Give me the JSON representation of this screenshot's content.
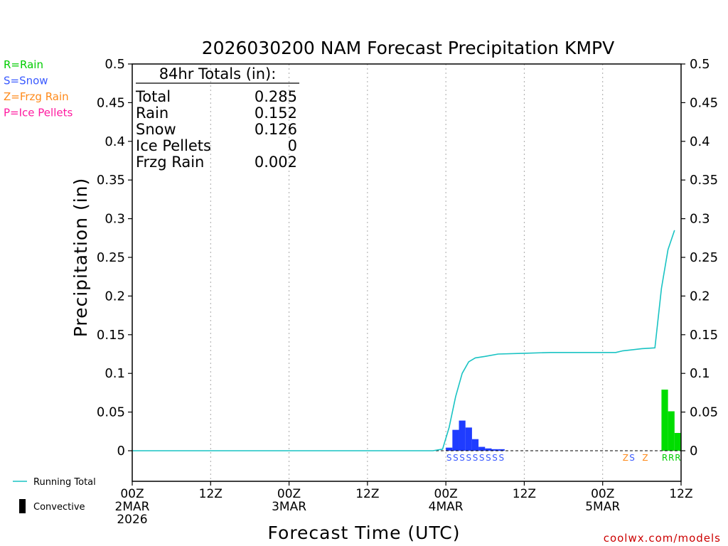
{
  "chart_data": {
    "type": "bar",
    "title": "2026030200 NAM Forecast Precipitation KMPV",
    "xlabel": "Forecast Time (UTC)",
    "ylabel": "Precipitation (in)",
    "xlim": [
      0,
      84
    ],
    "ylim": [
      -0.04,
      0.5
    ],
    "yticks": [
      0,
      0.05,
      0.1,
      0.15,
      0.2,
      0.25,
      0.3,
      0.35,
      0.4,
      0.45,
      0.5
    ],
    "ytick_labels": [
      "0",
      "0.05",
      "0.1",
      "0.15",
      "0.2",
      "0.25",
      "0.3",
      "0.35",
      "0.4",
      "0.45",
      "0.5"
    ],
    "xticks": [
      {
        "hour": 0,
        "lines": [
          "00Z",
          "2MAR",
          "2026"
        ]
      },
      {
        "hour": 12,
        "lines": [
          "12Z"
        ]
      },
      {
        "hour": 24,
        "lines": [
          "00Z",
          "3MAR"
        ]
      },
      {
        "hour": 36,
        "lines": [
          "12Z"
        ]
      },
      {
        "hour": 48,
        "lines": [
          "00Z",
          "4MAR"
        ]
      },
      {
        "hour": 60,
        "lines": [
          "12Z"
        ]
      },
      {
        "hour": 72,
        "lines": [
          "00Z",
          "5MAR"
        ]
      },
      {
        "hour": 84,
        "lines": [
          "12Z"
        ]
      }
    ],
    "type_legend": [
      {
        "label": "R=Rain",
        "color": "#00cc00"
      },
      {
        "label": "S=Snow",
        "color": "#3a5aff"
      },
      {
        "label": "Z=Frzg Rain",
        "color": "#ff8a1a"
      },
      {
        "label": "P=Ice Pellets",
        "color": "#ff1aa0"
      }
    ],
    "totals_box": {
      "heading": "84hr Totals (in):",
      "rows": [
        {
          "label": "Total",
          "value": "0.285"
        },
        {
          "label": "Rain",
          "value": "0.152"
        },
        {
          "label": "Snow",
          "value": "0.126"
        },
        {
          "label": "Ice Pellets",
          "value": "0"
        },
        {
          "label": "Frzg Rain",
          "value": "0.002"
        }
      ]
    },
    "series": [
      {
        "name": "Snow",
        "color": "#1f3cff",
        "bars": [
          {
            "hour": 48,
            "value": 0.004
          },
          {
            "hour": 49,
            "value": 0.027
          },
          {
            "hour": 50,
            "value": 0.039
          },
          {
            "hour": 51,
            "value": 0.03
          },
          {
            "hour": 52,
            "value": 0.015
          },
          {
            "hour": 53,
            "value": 0.005
          },
          {
            "hour": 54,
            "value": 0.003
          },
          {
            "hour": 55,
            "value": 0.002
          },
          {
            "hour": 56,
            "value": 0.002
          }
        ]
      },
      {
        "name": "Rain",
        "color": "#00dd00",
        "bars": [
          {
            "hour": 81,
            "value": 0.079
          },
          {
            "hour": 82,
            "value": 0.051
          },
          {
            "hour": 83,
            "value": 0.023
          }
        ]
      }
    ],
    "running_total": {
      "name": "Running Total",
      "color": "#19c3c3",
      "points": [
        [
          0,
          0
        ],
        [
          46,
          0
        ],
        [
          47.5,
          0.002
        ],
        [
          48.5,
          0.03
        ],
        [
          49.5,
          0.07
        ],
        [
          50.5,
          0.1
        ],
        [
          51.5,
          0.115
        ],
        [
          52.5,
          0.12
        ],
        [
          54,
          0.122
        ],
        [
          56,
          0.125
        ],
        [
          60,
          0.126
        ],
        [
          64,
          0.127
        ],
        [
          68,
          0.127
        ],
        [
          72,
          0.127
        ],
        [
          74,
          0.127
        ],
        [
          75,
          0.129
        ],
        [
          76,
          0.13
        ],
        [
          78,
          0.132
        ],
        [
          80,
          0.133
        ],
        [
          81,
          0.21
        ],
        [
          82,
          0.26
        ],
        [
          83,
          0.285
        ]
      ]
    },
    "type_markers": [
      {
        "hour": 48.5,
        "text": "S",
        "color": "#3a5aff"
      },
      {
        "hour": 49.5,
        "text": "S",
        "color": "#3a5aff"
      },
      {
        "hour": 50.5,
        "text": "S",
        "color": "#3a5aff"
      },
      {
        "hour": 51.5,
        "text": "S",
        "color": "#3a5aff"
      },
      {
        "hour": 52.5,
        "text": "S",
        "color": "#3a5aff"
      },
      {
        "hour": 53.5,
        "text": "S",
        "color": "#3a5aff"
      },
      {
        "hour": 54.5,
        "text": "S",
        "color": "#3a5aff"
      },
      {
        "hour": 55.5,
        "text": "S",
        "color": "#3a5aff"
      },
      {
        "hour": 56.5,
        "text": "S",
        "color": "#3a5aff"
      },
      {
        "hour": 75.5,
        "text": "Z",
        "color": "#ff8a1a"
      },
      {
        "hour": 76.5,
        "text": "S",
        "color": "#3a5aff"
      },
      {
        "hour": 78.5,
        "text": "Z",
        "color": "#ff8a1a"
      },
      {
        "hour": 81.5,
        "text": "R",
        "color": "#00cc00"
      },
      {
        "hour": 82.5,
        "text": "R",
        "color": "#00cc00"
      },
      {
        "hour": 83.5,
        "text": "R",
        "color": "#00cc00"
      }
    ],
    "bottom_legend": [
      {
        "label": "Running Total",
        "kind": "line",
        "color": "#19c3c3"
      },
      {
        "label": "Convective",
        "kind": "bar",
        "color": "#000000"
      }
    ],
    "credit": "coolwx.com/models"
  }
}
